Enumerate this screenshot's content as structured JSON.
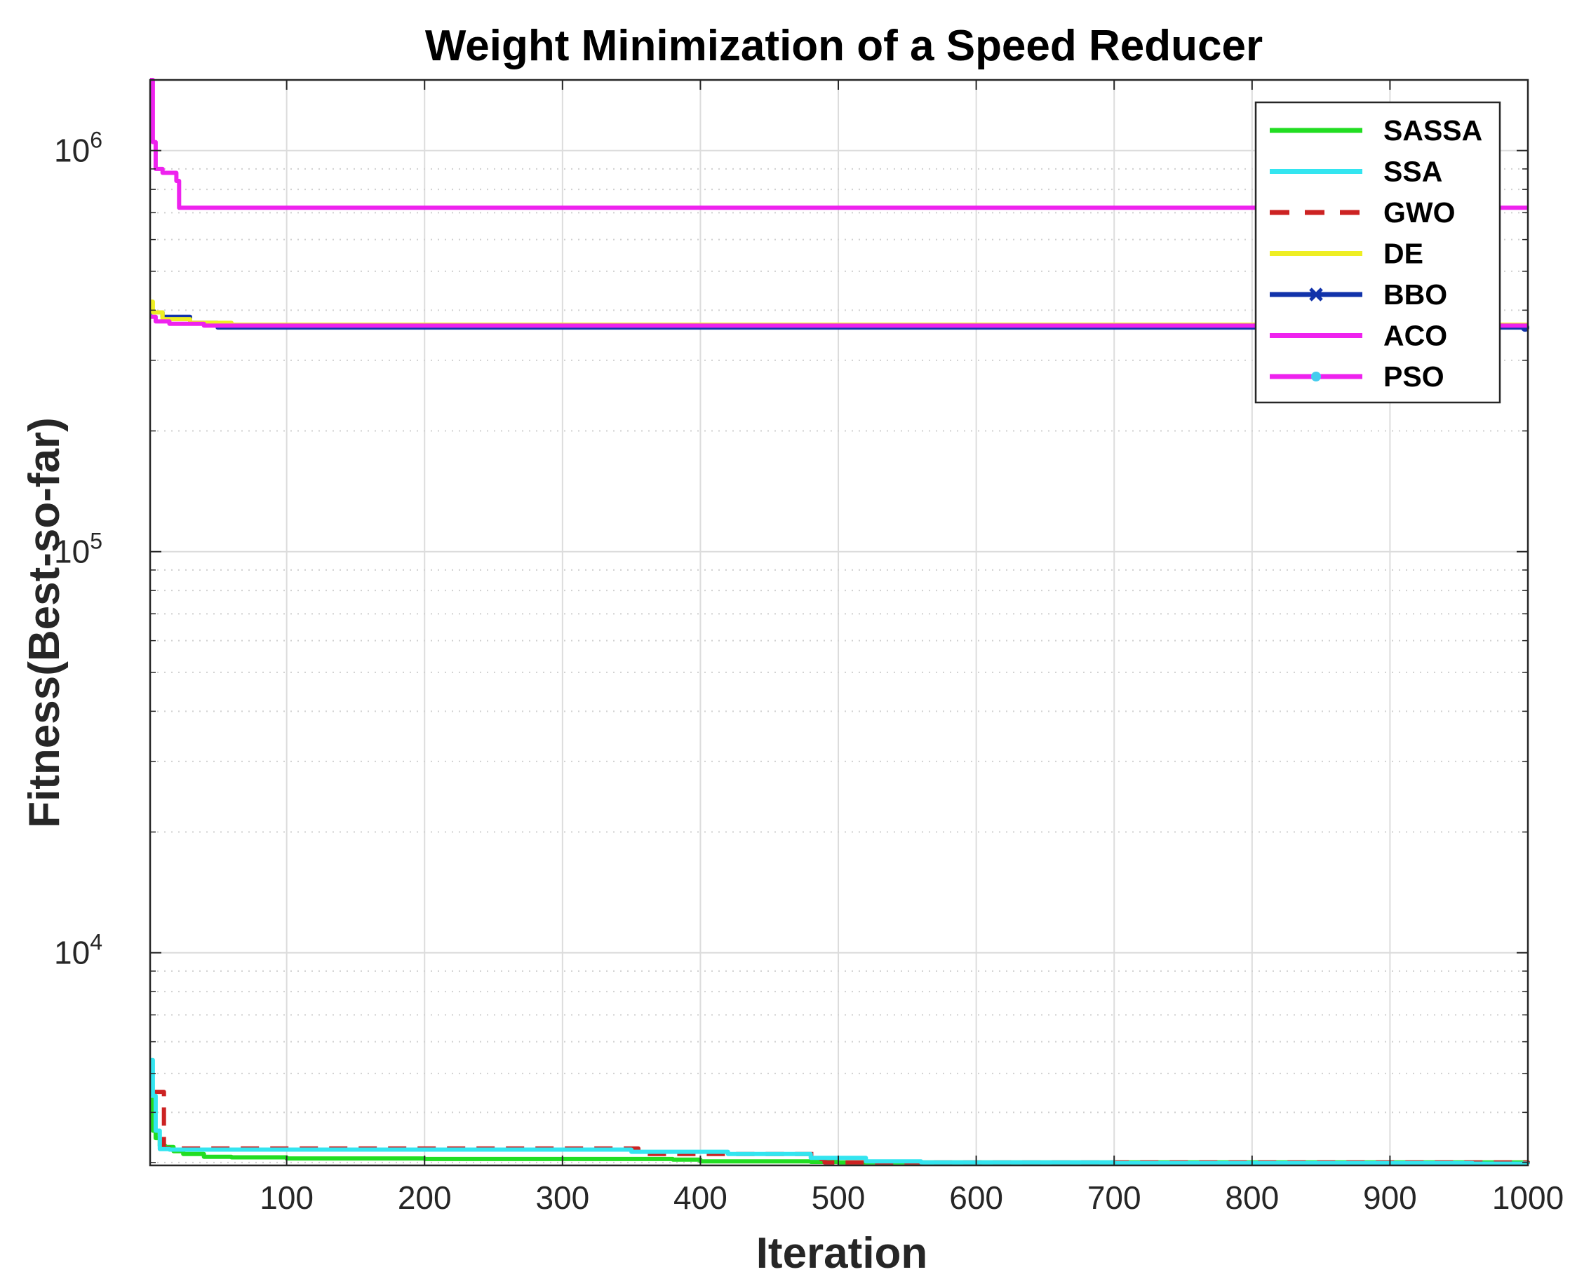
{
  "chart_data": {
    "type": "line",
    "title": "Weight Minimization of a Speed Reducer",
    "xlabel": "Iteration",
    "ylabel": "Fitness(Best-so-far)",
    "xlim": [
      1,
      1000
    ],
    "ylim": [
      2950,
      1500000
    ],
    "yscale": "log",
    "grid": true,
    "legend_position": "top-right",
    "xticks": [
      100,
      200,
      300,
      400,
      500,
      600,
      700,
      800,
      900,
      1000
    ],
    "xtick_labels": [
      "100",
      "200",
      "300",
      "400",
      "500",
      "600",
      "700",
      "800",
      "900",
      "1000"
    ],
    "yticks": [
      {
        "value": 10000,
        "base": "10",
        "exp": "4"
      },
      {
        "value": 100000,
        "base": "10",
        "exp": "5"
      },
      {
        "value": 1000000,
        "base": "10",
        "exp": "6"
      }
    ],
    "series": [
      {
        "name": "SASSA",
        "color": "#22dd22",
        "style": "solid",
        "marker": "none",
        "points": [
          [
            1,
            4300
          ],
          [
            3,
            3600
          ],
          [
            5,
            3450
          ],
          [
            8,
            3300
          ],
          [
            12,
            3280
          ],
          [
            18,
            3200
          ],
          [
            25,
            3150
          ],
          [
            40,
            3100
          ],
          [
            60,
            3090
          ],
          [
            100,
            3070
          ],
          [
            200,
            3060
          ],
          [
            300,
            3060
          ],
          [
            380,
            3050
          ],
          [
            400,
            3020
          ],
          [
            480,
            3010
          ],
          [
            500,
            3000
          ],
          [
            1000,
            2985
          ]
        ]
      },
      {
        "name": "SSA",
        "color": "#33e5f0",
        "style": "solid",
        "marker": "none",
        "points": [
          [
            1,
            5400
          ],
          [
            3,
            4400
          ],
          [
            5,
            3600
          ],
          [
            8,
            3240
          ],
          [
            15,
            3230
          ],
          [
            60,
            3230
          ],
          [
            300,
            3230
          ],
          [
            350,
            3190
          ],
          [
            420,
            3150
          ],
          [
            480,
            3080
          ],
          [
            520,
            3020
          ],
          [
            560,
            3000
          ],
          [
            700,
            2990
          ],
          [
            960,
            2980
          ],
          [
            1000,
            2970
          ]
        ]
      },
      {
        "name": "GWO",
        "color": "#cc2222",
        "style": "dashed",
        "marker": "none",
        "points": [
          [
            1,
            4500
          ],
          [
            10,
            4500
          ],
          [
            11,
            3250
          ],
          [
            350,
            3250
          ],
          [
            355,
            3150
          ],
          [
            480,
            3150
          ],
          [
            482,
            3060
          ],
          [
            490,
            3000
          ],
          [
            1000,
            2985
          ]
        ]
      },
      {
        "name": "DE",
        "color": "#eeee22",
        "style": "solid",
        "marker": "none",
        "points": [
          [
            1,
            420000
          ],
          [
            3,
            395000
          ],
          [
            10,
            380000
          ],
          [
            30,
            372000
          ],
          [
            60,
            368000
          ],
          [
            1000,
            368000
          ]
        ]
      },
      {
        "name": "BBO",
        "color": "#1133aa",
        "style": "solid",
        "marker": "x",
        "points": [
          [
            1,
            395000
          ],
          [
            10,
            385000
          ],
          [
            30,
            372000
          ],
          [
            50,
            362000
          ],
          [
            1000,
            362000
          ]
        ]
      },
      {
        "name": "ACO",
        "color": "#ee22ee",
        "style": "solid",
        "marker": "none",
        "points": [
          [
            1,
            1500000
          ],
          [
            3,
            1050000
          ],
          [
            5,
            900000
          ],
          [
            10,
            880000
          ],
          [
            20,
            840000
          ],
          [
            22,
            720000
          ],
          [
            1000,
            720000
          ]
        ]
      },
      {
        "name": "PSO",
        "color": "#ee22ee",
        "style": "solid",
        "marker": "dot",
        "points": [
          [
            1,
            385000
          ],
          [
            5,
            375000
          ],
          [
            15,
            370000
          ],
          [
            40,
            366000
          ],
          [
            1000,
            366000
          ]
        ]
      }
    ]
  }
}
